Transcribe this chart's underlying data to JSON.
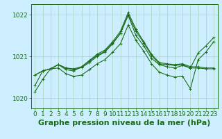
{
  "title": "Graphe pression niveau de la mer (hPa)",
  "bg_color": "#cceeff",
  "grid_color": "#b0d8c8",
  "line_color": "#1a6b1a",
  "title_fontsize": 8,
  "tick_fontsize": 6.5,
  "xlim": [
    -0.5,
    23.5
  ],
  "ylim": [
    1019.75,
    1022.25
  ],
  "yticks": [
    1020,
    1021,
    1022
  ],
  "xticks": [
    0,
    1,
    2,
    3,
    4,
    5,
    6,
    7,
    8,
    9,
    10,
    11,
    12,
    13,
    14,
    15,
    16,
    17,
    18,
    19,
    20,
    21,
    22,
    23
  ],
  "series": [
    [
      1020.55,
      1020.65,
      1020.7,
      1020.8,
      1020.72,
      1020.7,
      1020.75,
      1020.9,
      1021.05,
      1021.15,
      1021.35,
      1021.6,
      1022.05,
      1021.65,
      1021.35,
      1021.05,
      1020.85,
      1020.82,
      1020.8,
      1020.82,
      1020.75,
      1020.75,
      1020.72,
      1020.72
    ],
    [
      1020.55,
      1020.65,
      1020.7,
      1020.8,
      1020.72,
      1020.68,
      1020.73,
      1020.85,
      1021.0,
      1021.1,
      1021.3,
      1021.55,
      1022.0,
      1021.6,
      1021.32,
      1021.02,
      1020.82,
      1020.8,
      1020.78,
      1020.8,
      1020.72,
      1020.72,
      1020.7,
      1020.7
    ],
    [
      1020.3,
      1020.65,
      1020.7,
      1020.8,
      1020.68,
      1020.65,
      1020.75,
      1020.88,
      1021.02,
      1021.12,
      1021.32,
      1021.55,
      1021.98,
      1021.5,
      1021.25,
      1020.95,
      1020.8,
      1020.75,
      1020.72,
      1020.78,
      1020.72,
      1021.08,
      1021.25,
      1021.45
    ],
    [
      1020.15,
      1020.45,
      1020.7,
      1020.72,
      1020.58,
      1020.52,
      1020.55,
      1020.68,
      1020.82,
      1020.92,
      1021.1,
      1021.3,
      1021.75,
      1021.38,
      1021.12,
      1020.82,
      1020.62,
      1020.55,
      1020.5,
      1020.52,
      1020.22,
      1020.92,
      1021.1,
      1021.35
    ]
  ]
}
